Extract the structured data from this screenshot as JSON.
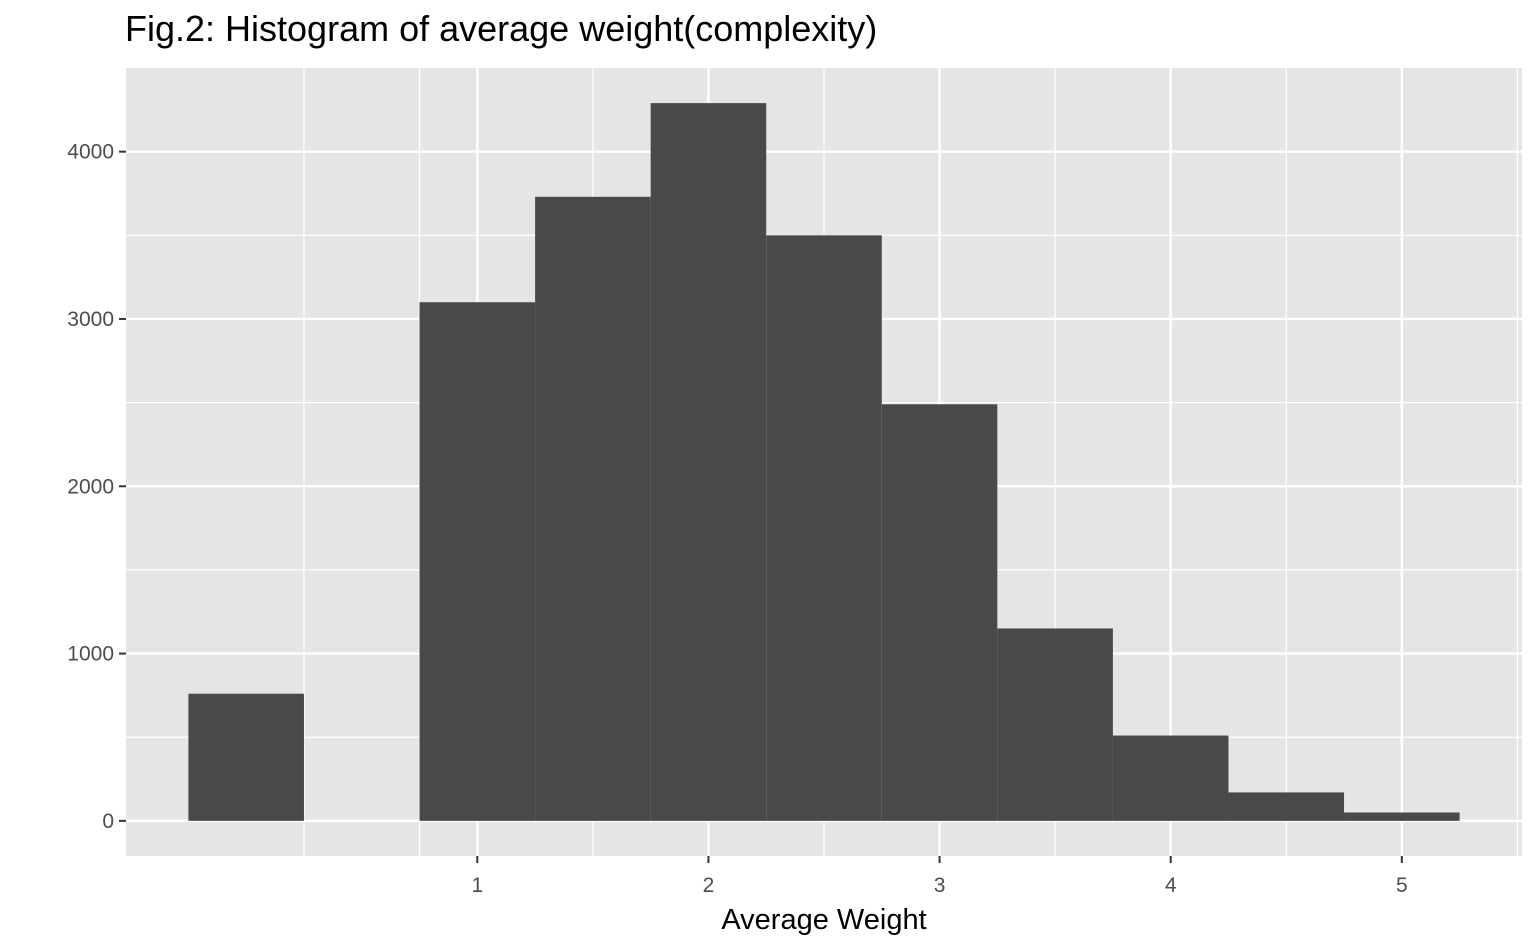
{
  "chart_data": {
    "type": "bar",
    "title": "Fig.2: Histogram of average weight(complexity)",
    "xlabel": "Average Weight",
    "ylabel": "",
    "bin_width": 0.5,
    "bins": [
      {
        "center": 0.0,
        "count": 760
      },
      {
        "center": 0.5,
        "count": 0
      },
      {
        "center": 1.0,
        "count": 3100
      },
      {
        "center": 1.5,
        "count": 3730
      },
      {
        "center": 2.0,
        "count": 4290
      },
      {
        "center": 2.5,
        "count": 3500
      },
      {
        "center": 3.0,
        "count": 2490
      },
      {
        "center": 3.5,
        "count": 1150
      },
      {
        "center": 4.0,
        "count": 510
      },
      {
        "center": 4.5,
        "count": 170
      },
      {
        "center": 5.0,
        "count": 50
      }
    ],
    "xlim": [
      -0.52,
      5.52
    ],
    "ylim": [
      -210,
      4500
    ],
    "x_ticks": [
      1,
      2,
      3,
      4,
      5
    ],
    "x_minor_ticks": [
      0.25,
      0.75,
      1.5,
      2.5,
      3.5,
      4.5,
      5.5
    ],
    "y_ticks": [
      0,
      1000,
      2000,
      3000,
      4000
    ],
    "y_minor_ticks": [
      500,
      1500,
      2500,
      3500
    ],
    "grid": true,
    "colors": {
      "panel_bg": "#e5e5e5",
      "grid": "#ffffff",
      "bar_fill": "#494949",
      "tick_text": "#4d4d4d",
      "tick_mark": "#333333"
    }
  }
}
